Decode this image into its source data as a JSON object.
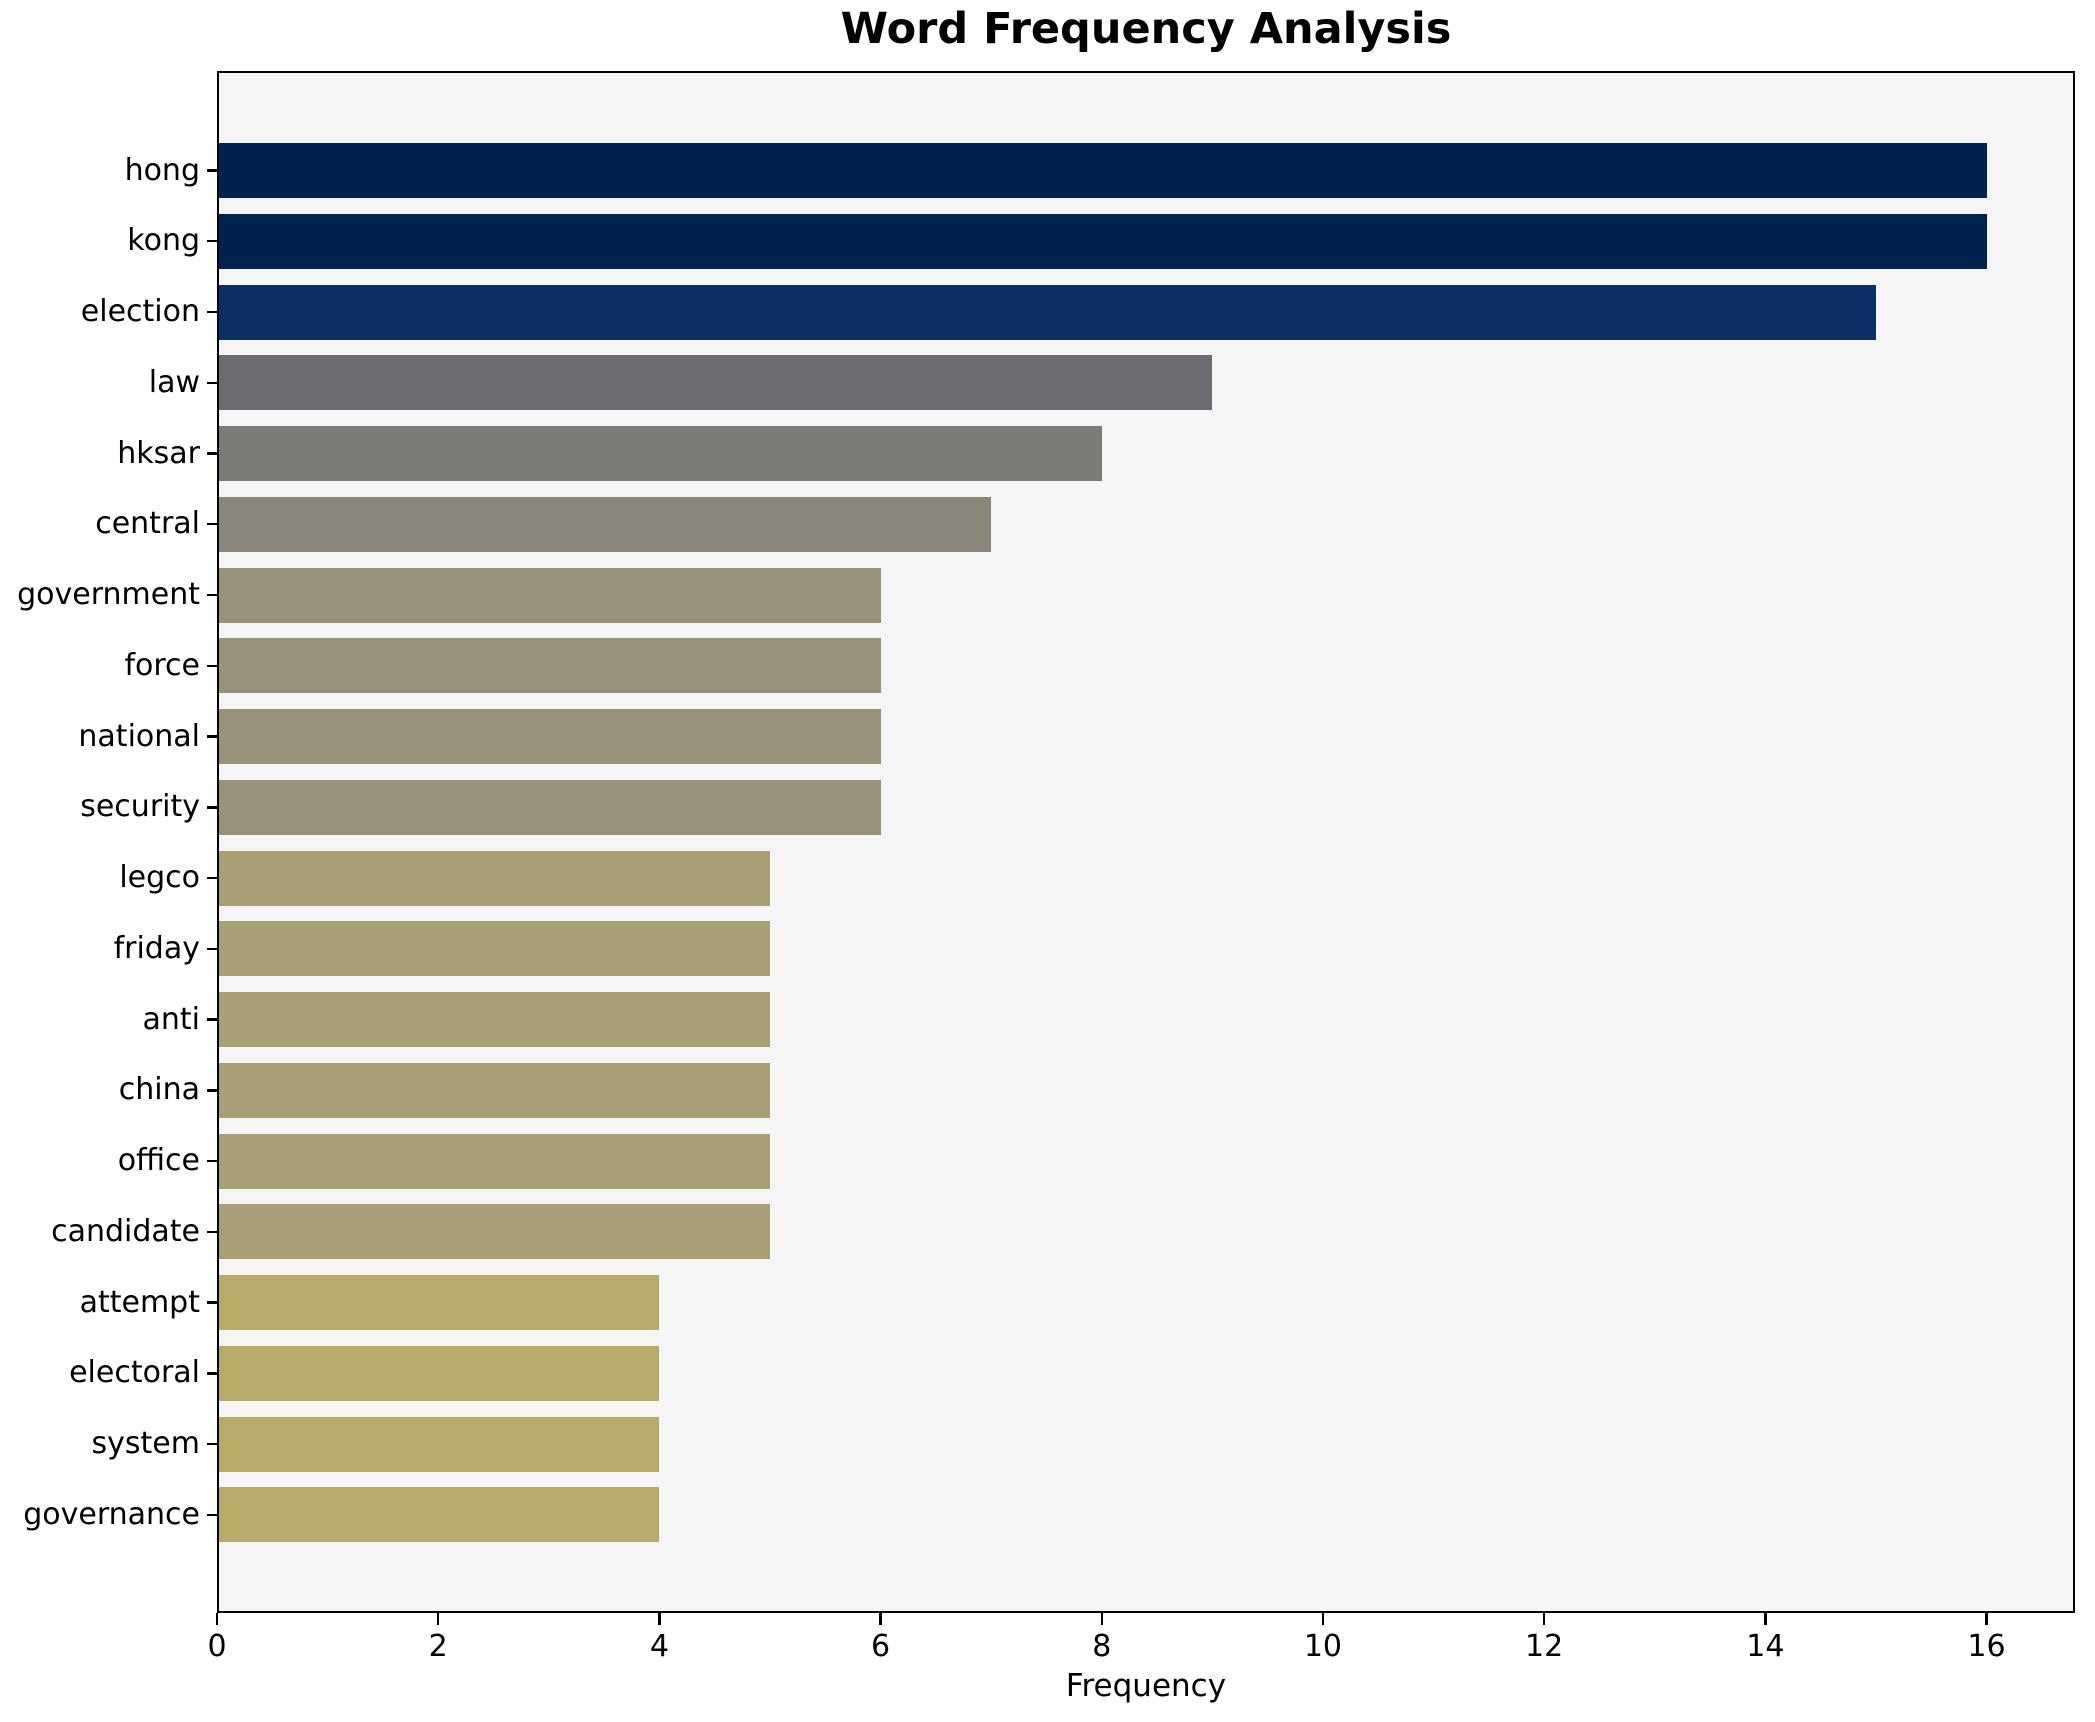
{
  "chart_data": {
    "type": "bar",
    "orientation": "horizontal",
    "title": "Word Frequency Analysis",
    "xlabel": "Frequency",
    "ylabel": "",
    "categories": [
      "hong",
      "kong",
      "election",
      "law",
      "hksar",
      "central",
      "government",
      "force",
      "national",
      "security",
      "legco",
      "friday",
      "anti",
      "china",
      "office",
      "candidate",
      "attempt",
      "electoral",
      "system",
      "governance"
    ],
    "values": [
      16,
      16,
      15,
      9,
      8,
      7,
      6,
      6,
      6,
      6,
      5,
      5,
      5,
      5,
      5,
      5,
      4,
      4,
      4,
      4
    ],
    "bar_colors": [
      "#00224e",
      "#00224e",
      "#0a3067",
      "#6a6c71",
      "#7b7b77",
      "#8a877a",
      "#999278",
      "#999278",
      "#999278",
      "#999278",
      "#a89f74",
      "#a89f74",
      "#a89f74",
      "#a89f74",
      "#a89f74",
      "#a89f74",
      "#b8ab6a",
      "#b8ab6a",
      "#b8ab6a",
      "#b8ab6a"
    ],
    "xlim": [
      0,
      16.8
    ],
    "xticks": [
      0,
      2,
      4,
      6,
      8,
      10,
      12,
      14,
      16
    ],
    "grid": false,
    "legend": null,
    "plot_bg": "#f5f5f6",
    "axis_color": "#000000",
    "text_color": "#000000"
  }
}
